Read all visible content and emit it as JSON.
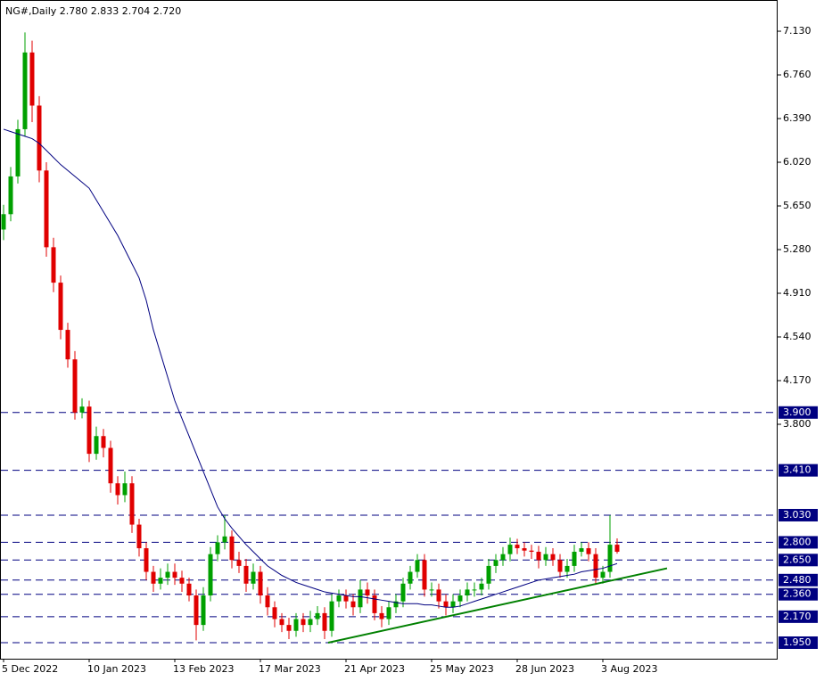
{
  "chart_data": {
    "type": "candlestick",
    "title": "NG#,Daily  2.780 2.833 2.704 2.720",
    "categories": [
      "5 Dec 2022",
      null,
      null,
      null,
      null,
      null,
      null,
      null,
      null,
      null,
      null,
      null,
      "10 Jan 2023",
      null,
      null,
      null,
      null,
      null,
      null,
      null,
      null,
      null,
      null,
      null,
      "13 Feb 2023",
      null,
      null,
      null,
      null,
      null,
      null,
      null,
      null,
      null,
      null,
      null,
      "17 Mar 2023",
      null,
      null,
      null,
      null,
      null,
      null,
      null,
      null,
      null,
      null,
      null,
      "21 Apr 2023",
      null,
      null,
      null,
      null,
      null,
      null,
      null,
      null,
      null,
      null,
      null,
      "25 May 2023",
      null,
      null,
      null,
      null,
      null,
      null,
      null,
      null,
      null,
      null,
      null,
      "28 Jun 2023",
      null,
      null,
      null,
      null,
      null,
      null,
      null,
      null,
      null,
      null,
      null,
      "3 Aug 2023",
      null,
      null
    ],
    "open": [
      5.45,
      5.58,
      5.9,
      6.3,
      6.95,
      6.5,
      5.95,
      5.3,
      5.0,
      4.6,
      4.35,
      3.9,
      3.95,
      3.55,
      3.7,
      3.6,
      3.3,
      3.2,
      3.3,
      2.95,
      2.75,
      2.55,
      2.45,
      2.5,
      2.55,
      2.5,
      2.45,
      2.35,
      2.1,
      2.35,
      2.7,
      2.8,
      2.85,
      2.65,
      2.6,
      2.45,
      2.55,
      2.35,
      2.25,
      2.15,
      2.1,
      2.05,
      2.15,
      2.1,
      2.15,
      2.2,
      2.05,
      2.3,
      2.35,
      2.3,
      2.25,
      2.4,
      2.35,
      2.2,
      2.15,
      2.25,
      2.3,
      2.45,
      2.55,
      2.65,
      2.4,
      2.4,
      2.3,
      2.25,
      2.3,
      2.35,
      2.4,
      2.4,
      2.45,
      2.6,
      2.65,
      2.7,
      2.78,
      2.75,
      2.73,
      2.72,
      2.65,
      2.7,
      2.65,
      2.55,
      2.6,
      2.72,
      2.75,
      2.7,
      2.5,
      2.55,
      2.78
    ],
    "high": [
      5.66,
      5.98,
      6.38,
      7.12,
      7.05,
      6.58,
      6.02,
      5.38,
      5.06,
      4.66,
      4.42,
      4.02,
      4.0,
      3.78,
      3.76,
      3.66,
      3.36,
      3.4,
      3.36,
      3.0,
      2.8,
      2.6,
      2.58,
      2.62,
      2.62,
      2.56,
      2.5,
      2.4,
      2.42,
      2.76,
      2.86,
      3.03,
      2.9,
      2.72,
      2.66,
      2.62,
      2.6,
      2.42,
      2.3,
      2.2,
      2.16,
      2.2,
      2.2,
      2.22,
      2.26,
      2.25,
      2.36,
      2.4,
      2.4,
      2.36,
      2.48,
      2.46,
      2.4,
      2.26,
      2.3,
      2.36,
      2.5,
      2.6,
      2.7,
      2.7,
      2.46,
      2.45,
      2.36,
      2.36,
      2.4,
      2.46,
      2.46,
      2.5,
      2.66,
      2.7,
      2.76,
      2.84,
      2.83,
      2.8,
      2.78,
      2.77,
      2.76,
      2.75,
      2.7,
      2.66,
      2.78,
      2.8,
      2.8,
      2.75,
      2.6,
      3.03,
      2.833
    ],
    "low": [
      5.36,
      5.52,
      5.84,
      6.24,
      6.36,
      5.85,
      5.22,
      4.92,
      4.52,
      4.28,
      3.84,
      3.85,
      3.48,
      3.5,
      3.52,
      3.22,
      3.12,
      3.14,
      2.88,
      2.68,
      2.48,
      2.38,
      2.4,
      2.44,
      2.44,
      2.38,
      2.3,
      1.97,
      2.05,
      2.3,
      2.64,
      2.74,
      2.58,
      2.54,
      2.38,
      2.4,
      2.28,
      2.18,
      2.08,
      2.04,
      1.98,
      2.0,
      2.04,
      2.04,
      2.1,
      1.98,
      2.0,
      2.25,
      2.24,
      2.18,
      2.2,
      2.28,
      2.14,
      2.08,
      2.1,
      2.2,
      2.25,
      2.4,
      2.5,
      2.34,
      2.34,
      2.24,
      2.18,
      2.2,
      2.25,
      2.3,
      2.34,
      2.35,
      2.4,
      2.54,
      2.6,
      2.64,
      2.7,
      2.68,
      2.66,
      2.58,
      2.6,
      2.6,
      2.5,
      2.5,
      2.55,
      2.68,
      2.64,
      2.44,
      2.45,
      2.5,
      2.704
    ],
    "close": [
      5.58,
      5.9,
      6.3,
      6.95,
      6.5,
      5.95,
      5.3,
      5.0,
      4.6,
      4.35,
      3.9,
      3.95,
      3.55,
      3.7,
      3.6,
      3.3,
      3.2,
      3.3,
      2.95,
      2.75,
      2.55,
      2.45,
      2.5,
      2.55,
      2.5,
      2.45,
      2.35,
      2.1,
      2.35,
      2.7,
      2.8,
      2.85,
      2.65,
      2.6,
      2.45,
      2.55,
      2.35,
      2.25,
      2.15,
      2.1,
      2.05,
      2.15,
      2.1,
      2.15,
      2.2,
      2.05,
      2.3,
      2.35,
      2.3,
      2.25,
      2.4,
      2.35,
      2.2,
      2.15,
      2.25,
      2.3,
      2.45,
      2.55,
      2.65,
      2.4,
      2.4,
      2.3,
      2.25,
      2.3,
      2.35,
      2.4,
      2.4,
      2.45,
      2.6,
      2.65,
      2.7,
      2.78,
      2.75,
      2.73,
      2.72,
      2.65,
      2.7,
      2.65,
      2.55,
      2.6,
      2.72,
      2.75,
      2.7,
      2.5,
      2.55,
      2.78,
      2.72
    ],
    "moving_average": [
      6.3,
      6.28,
      6.26,
      6.24,
      6.22,
      6.18,
      6.12,
      6.06,
      6.0,
      5.95,
      5.9,
      5.85,
      5.8,
      5.7,
      5.6,
      5.5,
      5.4,
      5.28,
      5.16,
      5.04,
      4.85,
      4.6,
      4.4,
      4.2,
      4.0,
      3.85,
      3.7,
      3.55,
      3.4,
      3.25,
      3.1,
      3.0,
      2.92,
      2.85,
      2.78,
      2.72,
      2.66,
      2.6,
      2.56,
      2.52,
      2.49,
      2.46,
      2.44,
      2.42,
      2.4,
      2.38,
      2.37,
      2.36,
      2.35,
      2.34,
      2.34,
      2.33,
      2.32,
      2.31,
      2.3,
      2.29,
      2.28,
      2.28,
      2.28,
      2.27,
      2.27,
      2.26,
      2.25,
      2.25,
      2.26,
      2.28,
      2.3,
      2.32,
      2.34,
      2.36,
      2.38,
      2.4,
      2.42,
      2.44,
      2.46,
      2.48,
      2.49,
      2.5,
      2.51,
      2.52,
      2.53,
      2.55,
      2.56,
      2.57,
      2.58,
      2.6,
      2.62
    ],
    "up_color": "#00a000",
    "down_color": "#e00000",
    "ma_color": "#000080",
    "trendline_color": "#008000",
    "trendline": {
      "x": [
        45.5,
        93
      ],
      "y": [
        1.95,
        2.58
      ]
    },
    "ylim": [
      1.814,
      7.387
    ],
    "yticks": [
      {
        "value": 7.13,
        "label": "7.130"
      },
      {
        "value": 6.76,
        "label": "6.760"
      },
      {
        "value": 6.39,
        "label": "6.390"
      },
      {
        "value": 6.02,
        "label": "6.020"
      },
      {
        "value": 5.65,
        "label": "5.650"
      },
      {
        "value": 5.28,
        "label": "5.280"
      },
      {
        "value": 4.91,
        "label": "4.910"
      },
      {
        "value": 4.54,
        "label": "4.540"
      },
      {
        "value": 4.17,
        "label": "4.170"
      },
      {
        "value": 3.8,
        "label": "3.800"
      }
    ],
    "levels": [
      {
        "value": 3.9,
        "label": "3.900"
      },
      {
        "value": 3.41,
        "label": "3.410"
      },
      {
        "value": 3.03,
        "label": "3.030"
      },
      {
        "value": 2.8,
        "label": "2.800"
      },
      {
        "value": 2.65,
        "label": "2.650"
      },
      {
        "value": 2.48,
        "label": "2.480"
      },
      {
        "value": 2.36,
        "label": "2.360"
      },
      {
        "value": 2.17,
        "label": "2.170"
      },
      {
        "value": 1.95,
        "label": "1.950"
      }
    ],
    "level_color": "#000080"
  }
}
